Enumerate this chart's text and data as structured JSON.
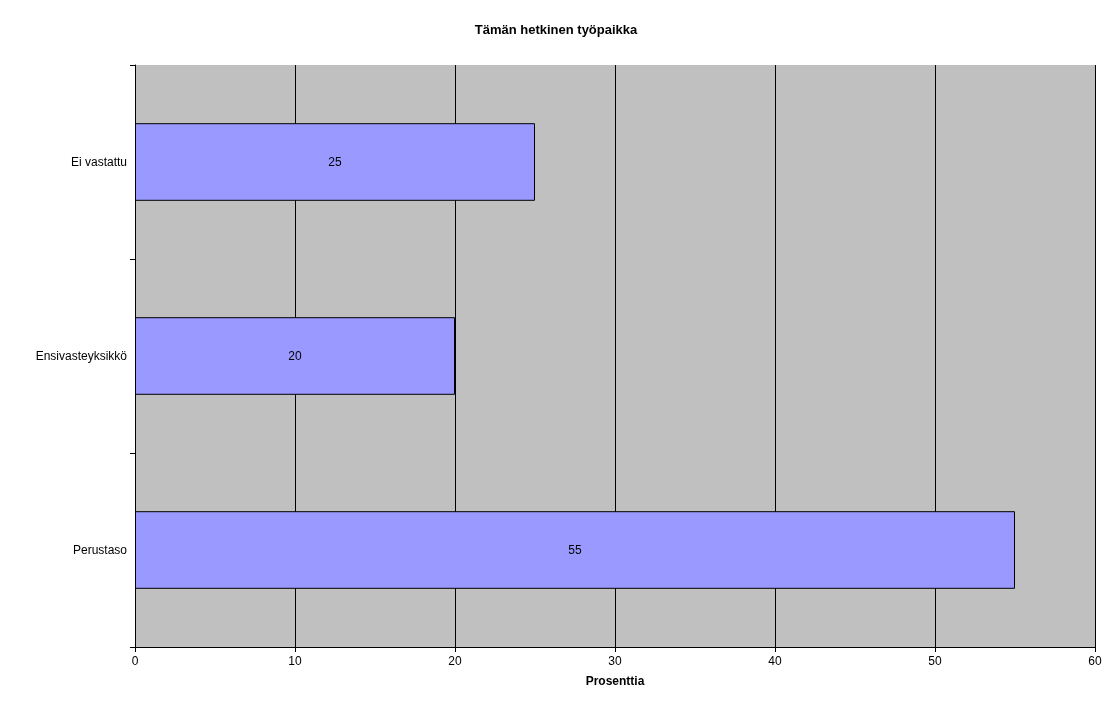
{
  "chart_data": {
    "type": "bar",
    "orientation": "horizontal",
    "title": "Tämän hetkinen työpaikka",
    "xlabel": "Prosenttia",
    "categories": [
      "Ei vastattu",
      "Ensivasteyksikkö",
      "Perustaso"
    ],
    "values": [
      25,
      20,
      55
    ],
    "color": "#9999ff",
    "xlim": [
      0,
      60
    ],
    "xticks": [
      0,
      10,
      20,
      30,
      40,
      50,
      60
    ],
    "grid": "x",
    "data_labels": true
  }
}
